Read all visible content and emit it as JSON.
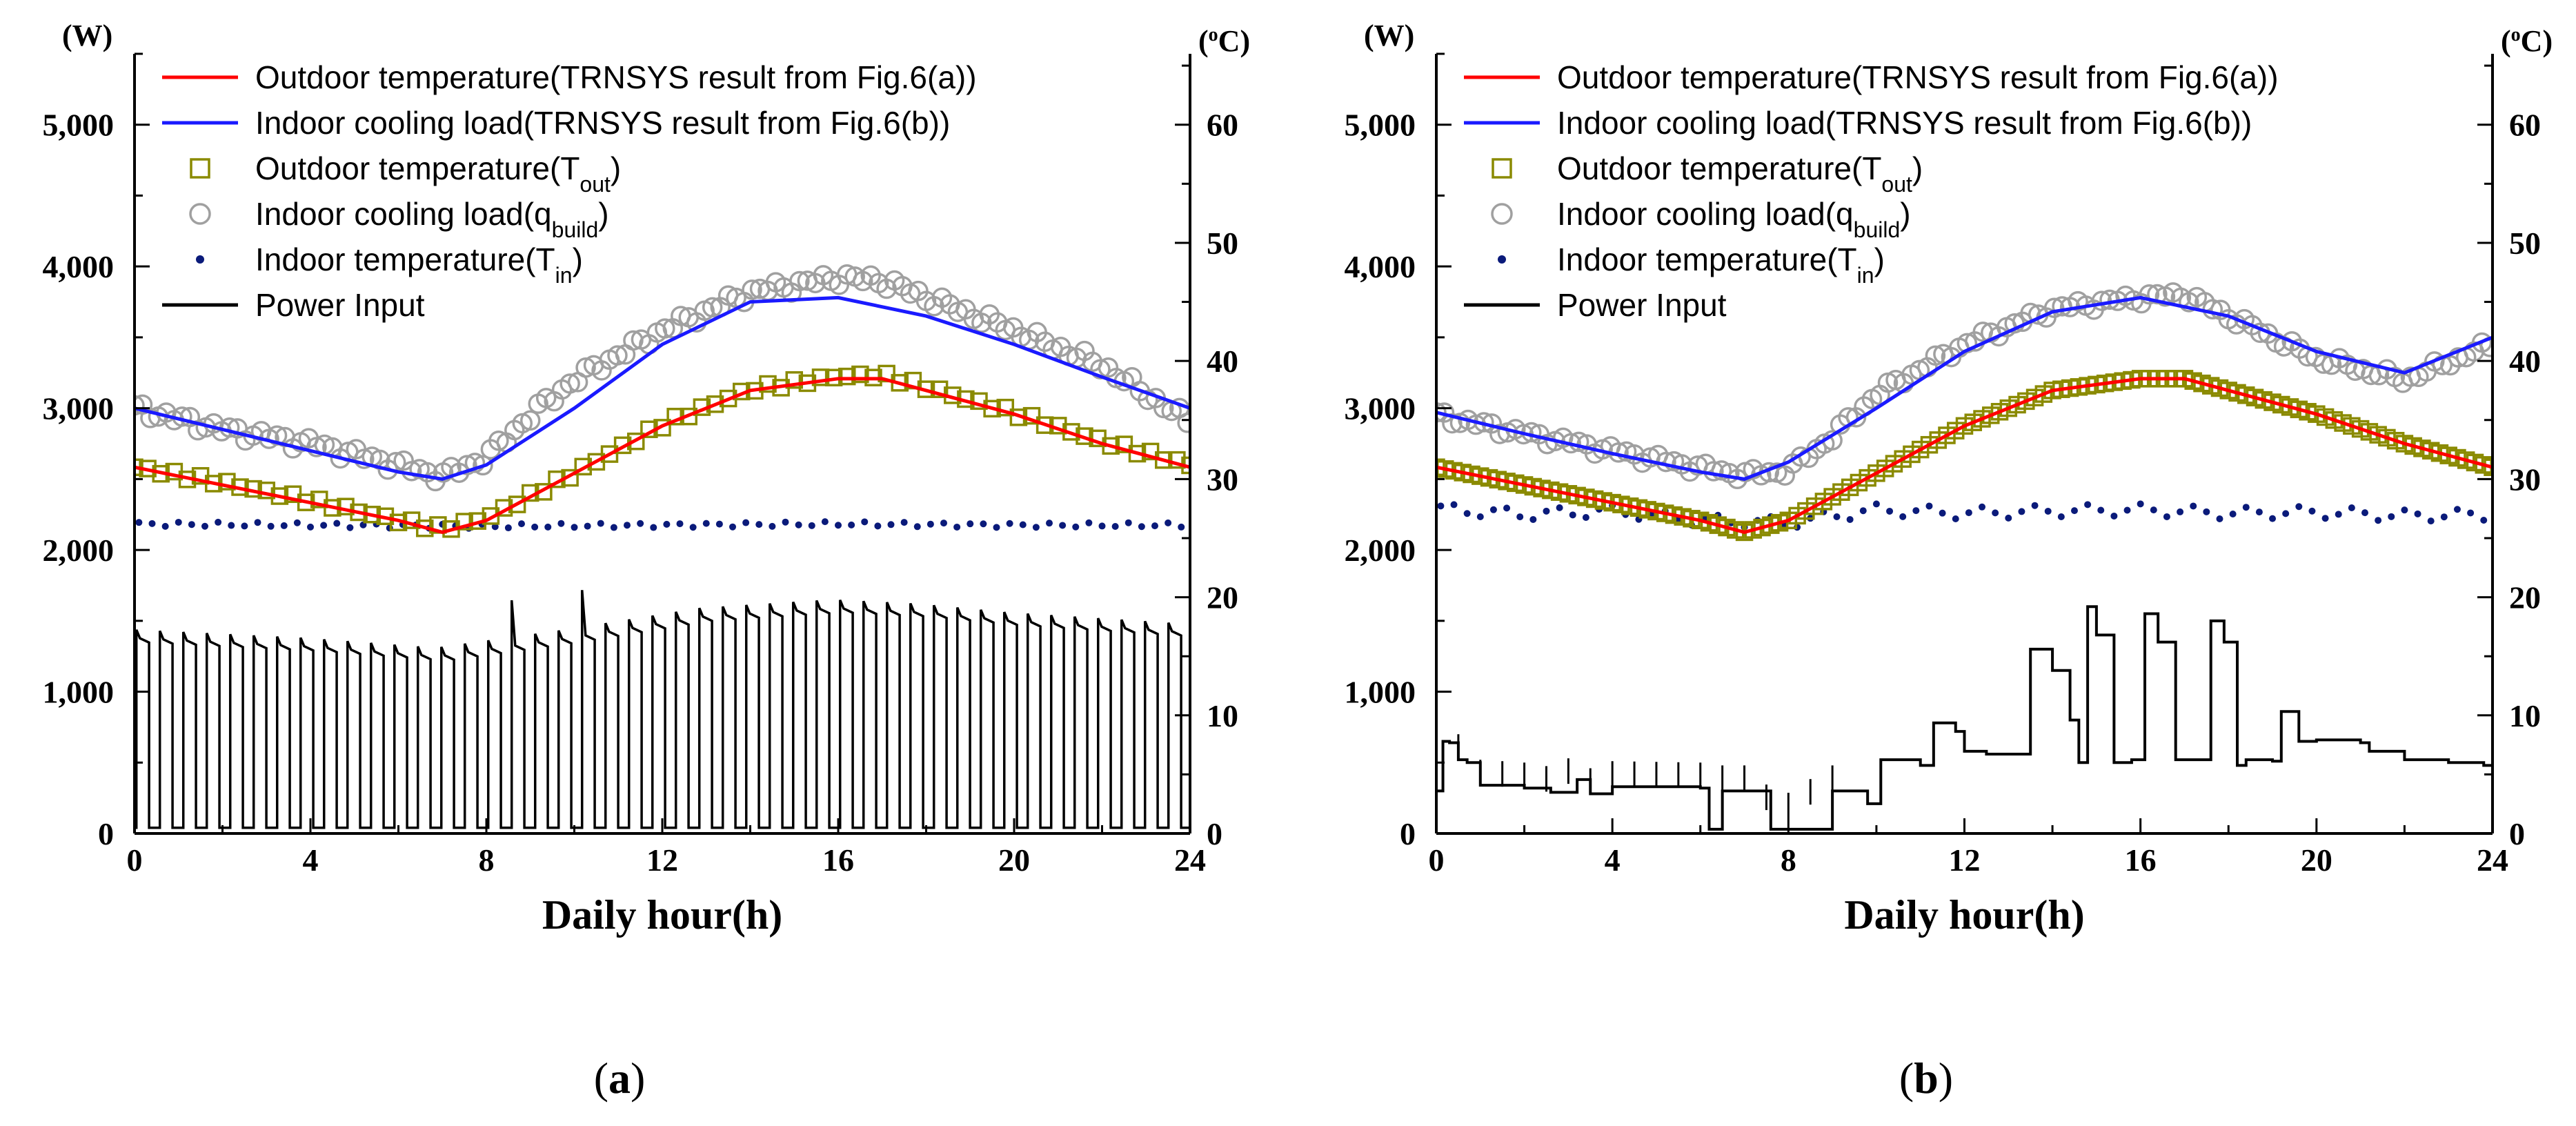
{
  "chart_data": [
    {
      "type": "line",
      "panel_label": "a",
      "xlabel": "Daily hour(h)",
      "ylabel_left": "(W)",
      "ylabel_right": "(°C)",
      "right_unit": {
        "sup": "o",
        "base": "C"
      },
      "xlim": [
        0,
        24
      ],
      "ylim_left": [
        0,
        5500
      ],
      "ylim_right": [
        0,
        66
      ],
      "xticks": [
        "0",
        "4",
        "8",
        "12",
        "16",
        "20",
        "24"
      ],
      "yticks_left": [
        "0",
        "1,000",
        "2,000",
        "3,000",
        "4,000",
        "5,000"
      ],
      "yticks_right": [
        "0",
        "10",
        "20",
        "30",
        "40",
        "50",
        "60"
      ],
      "legend": [
        {
          "key": "trn_temp",
          "text": "Outdoor temperature(TRNSYS result from Fig.6(a))"
        },
        {
          "key": "trn_load",
          "text": "Indoor cooling load(TRNSYS result from Fig.6(b))"
        },
        {
          "key": "t_out",
          "base": "Outdoor temperature(T",
          "sub": "out",
          "tail": ")"
        },
        {
          "key": "q_build",
          "base": "Indoor cooling load(q",
          "sub": "build",
          "tail": ")"
        },
        {
          "key": "t_in",
          "base": "Indoor temperature(T",
          "sub": "in",
          "tail": ")"
        },
        {
          "key": "power",
          "text": "Power Input"
        }
      ],
      "series_colors": {
        "trn_temp": "#ff0000",
        "trn_load": "#1a1aff",
        "t_out": "#8a8a00",
        "q_build": "#a0a0a0",
        "t_in": "#0a1a7a",
        "power": "#000000"
      },
      "series": [
        {
          "name": "Outdoor temperature (TRNSYS), °C",
          "axis": "right",
          "x": [
            0,
            2,
            4,
            6,
            7,
            8,
            10,
            12,
            14,
            16,
            17,
            18,
            20,
            22,
            24
          ],
          "y": [
            31,
            29.5,
            28,
            26.5,
            25.5,
            26.5,
            30.5,
            34.5,
            37.5,
            38.5,
            38.5,
            37.5,
            35.5,
            33,
            31
          ]
        },
        {
          "name": "Indoor cooling load (TRNSYS), W",
          "axis": "left",
          "x": [
            0,
            2,
            4,
            6,
            7,
            8,
            10,
            12,
            14,
            16,
            18,
            20,
            22,
            24
          ],
          "y": [
            3000,
            2850,
            2700,
            2550,
            2500,
            2600,
            3000,
            3450,
            3750,
            3780,
            3650,
            3450,
            3220,
            3000
          ]
        },
        {
          "name": "Outdoor temperature (T_out), °C",
          "axis": "right",
          "x": [
            0,
            2,
            4,
            6,
            7,
            8,
            10,
            12,
            14,
            16,
            17,
            18,
            20,
            22,
            24
          ],
          "y": [
            31,
            29.7,
            28.2,
            26.5,
            25.8,
            26.7,
            30.5,
            34.6,
            37.6,
            38.7,
            38.8,
            37.8,
            35.6,
            33.2,
            31.2
          ]
        },
        {
          "name": "Indoor cooling load (q_build), W",
          "axis": "left",
          "x": [
            0,
            2,
            4,
            6,
            7,
            8,
            9,
            10,
            12,
            14,
            16,
            17,
            18,
            20,
            22,
            24
          ],
          "y": [
            3000,
            2850,
            2750,
            2600,
            2520,
            2650,
            2950,
            3200,
            3550,
            3820,
            3920,
            3900,
            3780,
            3550,
            3300,
            2900
          ]
        },
        {
          "name": "Indoor temperature (T_in), °C",
          "axis": "right",
          "x": [
            0,
            4,
            8,
            12,
            16,
            20,
            24
          ],
          "y": [
            26.2,
            26.1,
            26,
            26.1,
            26.2,
            26.1,
            26.1
          ]
        },
        {
          "name": "Power Input, W",
          "axis": "left",
          "pattern": "on-off cycling",
          "x": [
            0,
            4,
            7,
            10,
            13,
            16,
            18,
            20,
            24
          ],
          "y": [
            1380,
            1320,
            1250,
            1380,
            1530,
            1590,
            1560,
            1500,
            1420
          ]
        }
      ]
    },
    {
      "type": "line",
      "panel_label": "b",
      "xlabel": "Daily hour(h)",
      "ylabel_left": "(W)",
      "ylabel_right": "(°C)",
      "right_unit": {
        "sup": "o",
        "base": "C"
      },
      "xlim": [
        0,
        24
      ],
      "ylim_left": [
        0,
        5500
      ],
      "ylim_right": [
        0,
        66
      ],
      "xticks": [
        "0",
        "4",
        "8",
        "12",
        "16",
        "20",
        "24"
      ],
      "yticks_left": [
        "0",
        "1,000",
        "2,000",
        "3,000",
        "4,000",
        "5,000"
      ],
      "yticks_right": [
        "0",
        "10",
        "20",
        "30",
        "40",
        "50",
        "60"
      ],
      "legend": [
        {
          "key": "trn_temp",
          "text": "Outdoor temperature(TRNSYS result from Fig.6(a))"
        },
        {
          "key": "trn_load",
          "text": "Indoor cooling load(TRNSYS result from Fig.6(b))"
        },
        {
          "key": "t_out",
          "base": "Outdoor temperature(T",
          "sub": "out",
          "tail": ")"
        },
        {
          "key": "q_build",
          "base": "Indoor cooling load(q",
          "sub": "build",
          "tail": ")"
        },
        {
          "key": "t_in",
          "base": "Indoor temperature(T",
          "sub": "in",
          "tail": ")"
        },
        {
          "key": "power",
          "text": "Power Input"
        }
      ],
      "series_colors": {
        "trn_temp": "#ff0000",
        "trn_load": "#1a1aff",
        "t_out": "#8a8a00",
        "q_build": "#a0a0a0",
        "t_in": "#0a1a7a",
        "power": "#000000"
      },
      "series": [
        {
          "name": "Outdoor temperature (TRNSYS), °C",
          "axis": "right",
          "x": [
            0,
            2,
            4,
            6,
            7,
            8,
            10,
            12,
            14,
            16,
            17,
            18,
            20,
            22,
            24
          ],
          "y": [
            31,
            29.5,
            28,
            26.5,
            25.5,
            26.5,
            30.5,
            34.5,
            37.5,
            38.5,
            38.5,
            37.5,
            35.5,
            33,
            31
          ]
        },
        {
          "name": "Indoor cooling load (TRNSYS), W",
          "axis": "left",
          "x": [
            0,
            2,
            4,
            6,
            7,
            8,
            10,
            12,
            14,
            16,
            18,
            20,
            22,
            24
          ],
          "y": [
            2970,
            2820,
            2680,
            2550,
            2500,
            2620,
            3000,
            3400,
            3680,
            3780,
            3650,
            3400,
            3250,
            3500
          ]
        },
        {
          "name": "Outdoor temperature (T_out), °C",
          "axis": "right",
          "x": [
            0,
            2,
            4,
            6,
            7,
            8,
            10,
            12,
            14,
            16,
            17,
            18,
            20,
            22,
            24
          ],
          "y": [
            31,
            29.5,
            28,
            26.5,
            25.5,
            26.5,
            30.5,
            34.5,
            37.5,
            38.5,
            38.5,
            37.5,
            35.5,
            33,
            31
          ]
        },
        {
          "name": "Indoor cooling load (q_build), W",
          "axis": "left",
          "x": [
            0,
            2,
            4,
            6,
            7,
            8,
            9,
            10,
            12,
            14,
            16,
            17,
            18,
            20,
            22,
            24
          ],
          "y": [
            2950,
            2820,
            2700,
            2580,
            2530,
            2560,
            2800,
            3100,
            3450,
            3700,
            3780,
            3800,
            3650,
            3350,
            3200,
            3450
          ]
        },
        {
          "name": "Indoor temperature (T_in), °C",
          "axis": "right",
          "x": [
            0,
            2,
            4,
            6,
            8,
            10,
            12,
            14,
            16,
            18,
            20,
            22,
            24
          ],
          "y": [
            27.5,
            27,
            27.3,
            26.5,
            26.3,
            27.4,
            27.1,
            27.3,
            27.4,
            27.1,
            27.2,
            26.9,
            27
          ]
        },
        {
          "name": "Power Input, W",
          "axis": "left",
          "x": [
            0,
            0.15,
            0.3,
            0.5,
            0.7,
            1,
            2,
            2.6,
            3.2,
            3.5,
            4,
            6,
            6.2,
            6.5,
            7.4,
            7.6,
            9,
            9.8,
            10.1,
            11,
            11.3,
            11.8,
            12,
            12.5,
            13.2,
            13.5,
            14,
            14.4,
            14.6,
            14.8,
            15,
            15.4,
            15.8,
            16.1,
            16.4,
            16.8,
            17.3,
            17.6,
            17.9,
            18.2,
            18.4,
            19,
            19.2,
            19.6,
            20,
            21,
            21.2,
            22,
            23,
            23.8,
            24
          ],
          "y": [
            300,
            650,
            640,
            520,
            500,
            340,
            320,
            290,
            380,
            280,
            330,
            320,
            30,
            300,
            300,
            30,
            300,
            210,
            520,
            480,
            780,
            720,
            580,
            560,
            560,
            1300,
            1150,
            800,
            500,
            1600,
            1400,
            500,
            520,
            1550,
            1350,
            520,
            520,
            1500,
            1350,
            480,
            520,
            510,
            860,
            650,
            660,
            640,
            580,
            520,
            500,
            480,
            380
          ]
        }
      ]
    }
  ],
  "captions": {
    "a_open": "(",
    "a_label": "a",
    "a_close": ")",
    "b_open": "(",
    "b_label": "b",
    "b_close": ")"
  }
}
